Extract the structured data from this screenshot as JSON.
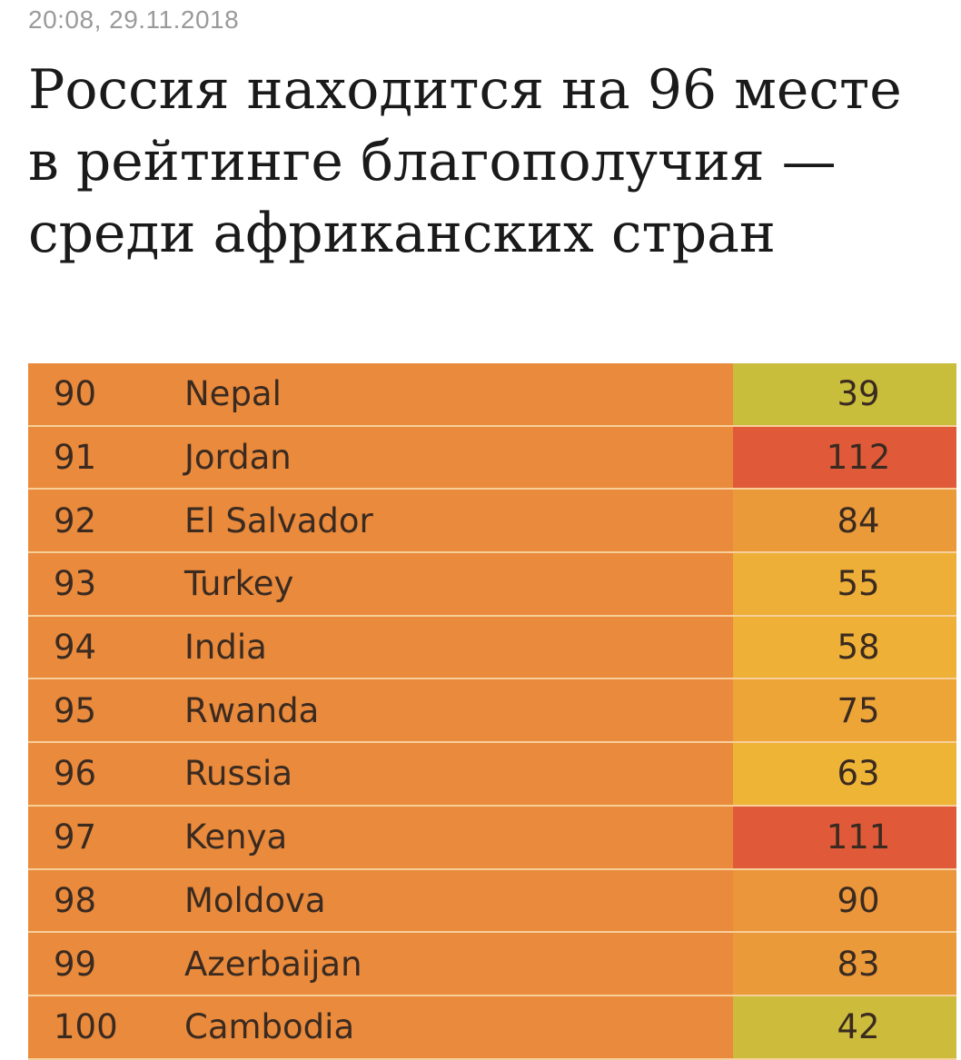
{
  "article": {
    "timestamp": "20:08, 29.11.2018",
    "headline": "Россия находится на 96 месте в рейтинге благополучия — среди африканских стран"
  },
  "ranking_table": {
    "rows": [
      {
        "rank": "90",
        "country": "Nepal",
        "score": "39",
        "score_color": "#c9bd3c"
      },
      {
        "rank": "91",
        "country": "Jordan",
        "score": "112",
        "score_color": "#e05a3a"
      },
      {
        "rank": "92",
        "country": "El Salvador",
        "score": "84",
        "score_color": "#eb9a3a"
      },
      {
        "rank": "93",
        "country": "Turkey",
        "score": "55",
        "score_color": "#eeaf38"
      },
      {
        "rank": "94",
        "country": "India",
        "score": "58",
        "score_color": "#eeb036"
      },
      {
        "rank": "95",
        "country": "Rwanda",
        "score": "75",
        "score_color": "#eea538"
      },
      {
        "rank": "96",
        "country": "Russia",
        "score": "63",
        "score_color": "#eeb436"
      },
      {
        "rank": "97",
        "country": "Kenya",
        "score": "111",
        "score_color": "#e05a3a"
      },
      {
        "rank": "98",
        "country": "Moldova",
        "score": "90",
        "score_color": "#eb963a"
      },
      {
        "rank": "99",
        "country": "Azerbaijan",
        "score": "83",
        "score_color": "#eb9a3a"
      },
      {
        "rank": "100",
        "country": "Cambodia",
        "score": "42",
        "score_color": "#cdbc3c"
      }
    ]
  }
}
